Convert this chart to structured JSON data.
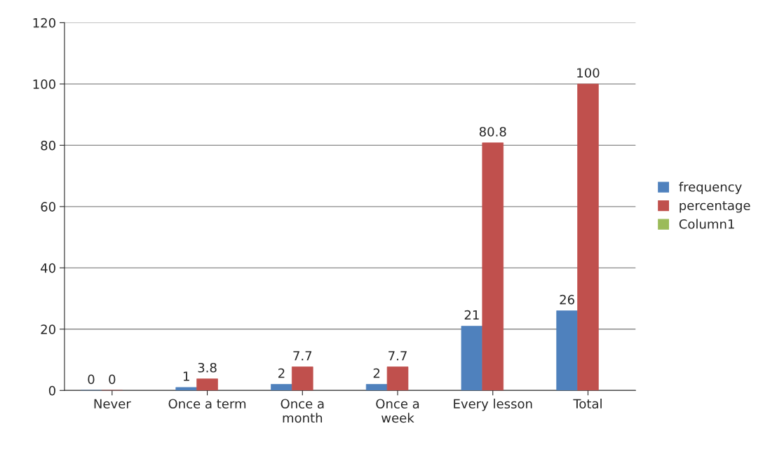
{
  "chart_data": {
    "type": "bar",
    "categories": [
      "Never",
      "Once a term",
      "Once a\nmonth",
      "Once a\nweek",
      "Every lesson",
      "Total"
    ],
    "series": [
      {
        "name": "frequency",
        "color": "#4f81bd",
        "values": [
          0,
          1,
          2,
          2,
          21,
          26
        ]
      },
      {
        "name": "percentage",
        "color": "#c0504d",
        "values": [
          0,
          3.8,
          7.7,
          7.7,
          80.8,
          100
        ]
      },
      {
        "name": "Column1",
        "color": "#9bbb59",
        "values": [
          null,
          null,
          null,
          null,
          null,
          null
        ]
      }
    ],
    "ylim": [
      0,
      120
    ],
    "yticks": [
      0,
      20,
      40,
      60,
      80,
      100,
      120
    ],
    "grid": "y",
    "legend": "right",
    "data_labels": true
  }
}
